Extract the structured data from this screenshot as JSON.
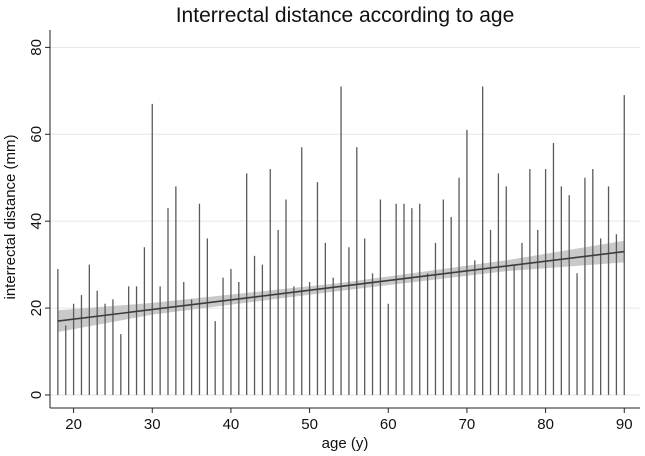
{
  "chart_data": {
    "type": "bar",
    "title": "Interrectal distance according to age",
    "xlabel": "age (y)",
    "ylabel": "interrectal distance (mm)",
    "xlim": [
      17,
      92
    ],
    "ylim": [
      0,
      80
    ],
    "x_ticks": [
      "20",
      "30",
      "40",
      "50",
      "60",
      "70",
      "80",
      "90"
    ],
    "y_ticks": [
      "0",
      "20",
      "40",
      "60",
      "80"
    ],
    "grid": true,
    "legend": "none",
    "colors": {
      "spike": "#5a5a5a",
      "fit_line": "#3c3c3c",
      "ci_band": "#c9c9c9",
      "grid": "#e6e6e6",
      "axis": "#222222"
    },
    "x": [
      18,
      19,
      20,
      21,
      22,
      23,
      24,
      25,
      26,
      27,
      28,
      29,
      30,
      31,
      32,
      33,
      34,
      35,
      36,
      37,
      38,
      39,
      40,
      41,
      42,
      43,
      44,
      45,
      46,
      47,
      48,
      49,
      50,
      51,
      52,
      53,
      54,
      55,
      56,
      57,
      58,
      59,
      60,
      61,
      62,
      63,
      64,
      65,
      66,
      67,
      68,
      69,
      70,
      71,
      72,
      73,
      74,
      75,
      76,
      77,
      78,
      79,
      80,
      81,
      82,
      83,
      84,
      85,
      86,
      87,
      88,
      89,
      90
    ],
    "values": [
      29,
      16,
      21,
      23,
      30,
      24,
      21,
      22,
      14,
      25,
      25,
      34,
      67,
      25,
      43,
      48,
      26,
      22,
      44,
      36,
      17,
      27,
      29,
      26,
      51,
      32,
      30,
      52,
      38,
      45,
      25,
      57,
      26,
      49,
      35,
      27,
      71,
      34,
      57,
      36,
      28,
      45,
      21,
      44,
      44,
      43,
      44,
      28,
      35,
      45,
      41,
      50,
      61,
      31,
      71,
      38,
      51,
      48,
      30,
      35,
      52,
      38,
      52,
      58,
      48,
      46,
      28,
      50,
      52,
      36,
      48,
      37,
      69
    ],
    "fit": {
      "x": [
        18,
        90
      ],
      "y": [
        17,
        33
      ],
      "ci_lower": [
        [
          18,
          14.5
        ],
        [
          30,
          18.5
        ],
        [
          54,
          24.0
        ],
        [
          75,
          28.5
        ],
        [
          90,
          30.5
        ]
      ],
      "ci_upper": [
        [
          18,
          19.5
        ],
        [
          30,
          21.2
        ],
        [
          54,
          25.8
        ],
        [
          75,
          31.0
        ],
        [
          90,
          35.5
        ]
      ]
    }
  }
}
